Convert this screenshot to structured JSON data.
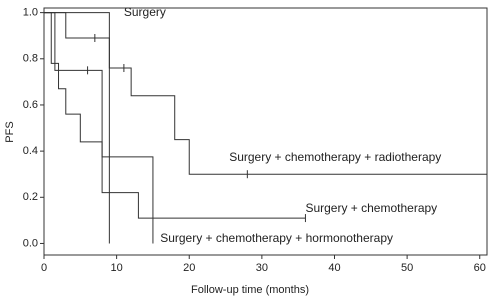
{
  "chart_data": {
    "type": "step",
    "x_label": "Follow-up time (months)",
    "y_label": "PFS",
    "xlim": [
      0,
      61
    ],
    "ylim": [
      -0.05,
      1.02
    ],
    "xticks": [
      0,
      10,
      20,
      30,
      40,
      50,
      60
    ],
    "yticks": [
      {
        "value": 0,
        "label": "0.0"
      },
      0.2,
      0.4,
      0.6,
      0.8,
      {
        "value": 1,
        "label": "1.0"
      }
    ],
    "series": [
      {
        "name": "Surgery",
        "color": "#333333",
        "x": [
          0,
          3,
          9
        ],
        "values": [
          1,
          0.89,
          0
        ],
        "censor_x": [
          7
        ],
        "censor_values": [
          0.89
        ]
      },
      {
        "name": "Surgery + chemotherapy + radiotherapy",
        "color": "#333333",
        "x": [
          0,
          9,
          12,
          18,
          20,
          61
        ],
        "values": [
          1,
          0.76,
          0.64,
          0.45,
          0.3,
          0.3
        ],
        "censor_x": [
          11,
          28,
          61
        ],
        "censor_values": [
          0.76,
          0.3,
          0.3
        ]
      },
      {
        "name": "Surgery + chemotherapy",
        "color": "#333333",
        "x": [
          0,
          1,
          2,
          3,
          5,
          8,
          13,
          36
        ],
        "values": [
          1,
          0.78,
          0.67,
          0.56,
          0.44,
          0.22,
          0.11,
          0.11
        ],
        "censor_x": [
          36
        ],
        "censor_values": [
          0.11
        ]
      },
      {
        "name": "Surgery + chemotherapy + hormonotherapy",
        "color": "#333333",
        "x": [
          0,
          1.5,
          8,
          15
        ],
        "values": [
          1,
          0.75,
          0.375,
          0
        ],
        "censor_x": [
          6
        ],
        "censor_values": [
          0.75
        ]
      }
    ]
  }
}
